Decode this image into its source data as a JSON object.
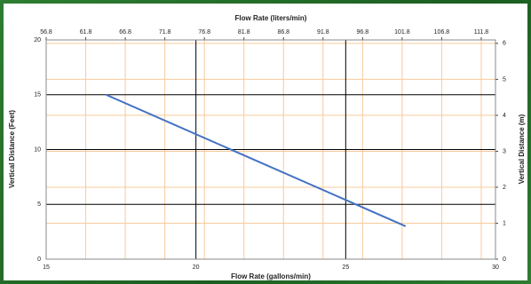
{
  "chart_data": {
    "type": "line",
    "xlabel": "Flow Rate (gallons/min)",
    "x2label": "Flow Rate (liters/min)",
    "ylabel": "Vertical Distance (Feet)",
    "y2label": "Vertical Distance (m)",
    "x": [
      17,
      27
    ],
    "series": [
      {
        "color": "#4472c4",
        "values": [
          15,
          3
        ]
      }
    ],
    "xlim": [
      15,
      30
    ],
    "xticks": [
      15,
      20,
      25,
      30
    ],
    "x2lim": [
      56.8,
      113.6
    ],
    "x2ticks": [
      56.8,
      61.8,
      66.8,
      71.8,
      76.8,
      81.8,
      86.8,
      91.8,
      96.8,
      101.8,
      106.8,
      111.8
    ],
    "ylim": [
      0,
      20
    ],
    "yticks": [
      0,
      5,
      10,
      15,
      20
    ],
    "y2lim": [
      0,
      6.096
    ],
    "y2ticks": [
      0,
      1,
      2,
      3,
      4,
      5,
      6
    ],
    "grid": true,
    "grid_color": "#000000",
    "minor_grid_color": "#f8c99a"
  }
}
